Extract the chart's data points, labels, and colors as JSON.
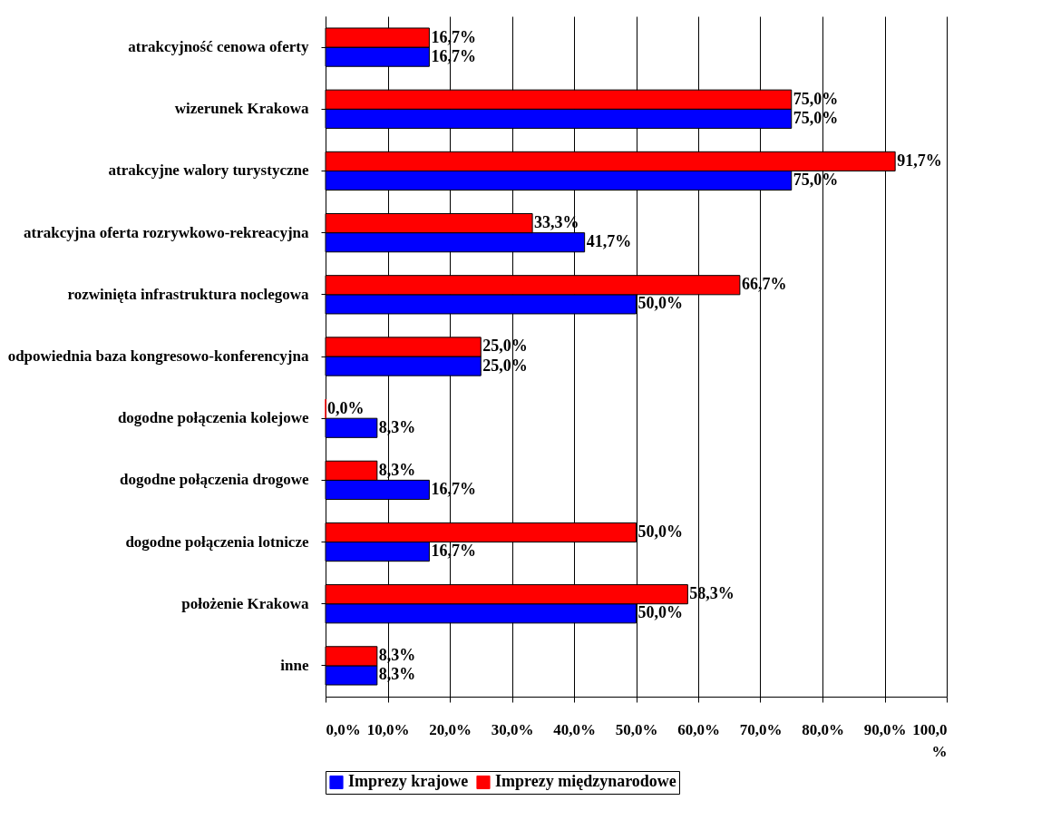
{
  "chart_data": {
    "type": "bar",
    "orientation": "horizontal",
    "categories": [
      "atrakcyjność cenowa oferty",
      "wizerunek Krakowa",
      "atrakcyjne walory turystyczne",
      "atrakcyjna oferta rozrywkowo-rekreacyjna",
      "rozwinięta infrastruktura noclegowa",
      "odpowiednia baza kongresowo-konferencyjna",
      "dogodne połączenia kolejowe",
      "dogodne połączenia drogowe",
      "dogodne połączenia lotnicze",
      "położenie Krakowa",
      "inne"
    ],
    "series": [
      {
        "name": "Imprezy krajowe",
        "color": "#0000ff",
        "values": [
          16.7,
          75.0,
          75.0,
          41.7,
          50.0,
          25.0,
          8.3,
          16.7,
          16.7,
          50.0,
          8.3
        ],
        "value_labels": [
          "16,7%",
          "75,0%",
          "75,0%",
          "41,7%",
          "50,0%",
          "25,0%",
          "8,3%",
          "16,7%",
          "16,7%",
          "50,0%",
          "8,3%"
        ]
      },
      {
        "name": "Imprezy międzynarodowe",
        "color": "#ff0000",
        "values": [
          16.7,
          75.0,
          91.7,
          33.3,
          66.7,
          25.0,
          0.0,
          8.3,
          50.0,
          58.3,
          8.3
        ],
        "value_labels": [
          "16,7%",
          "75,0%",
          "91,7%",
          "33,3%",
          "66,7%",
          "25,0%",
          "0,0%",
          "8,3%",
          "50,0%",
          "58,3%",
          "8,3%"
        ]
      }
    ],
    "xlim": [
      0,
      100
    ],
    "xticks": [
      {
        "value": 0,
        "label": "0,0%"
      },
      {
        "value": 10,
        "label": "10,0%"
      },
      {
        "value": 20,
        "label": "20,0%"
      },
      {
        "value": 30,
        "label": "30,0%"
      },
      {
        "value": 40,
        "label": "40,0%"
      },
      {
        "value": 50,
        "label": "50,0%"
      },
      {
        "value": 60,
        "label": "60,0%"
      },
      {
        "value": 70,
        "label": "70,0%"
      },
      {
        "value": 80,
        "label": "80,0%"
      },
      {
        "value": 90,
        "label": "90,0%"
      },
      {
        "value": 100,
        "label": "100,0 %"
      }
    ],
    "grid": "x",
    "legend": "bottom"
  }
}
